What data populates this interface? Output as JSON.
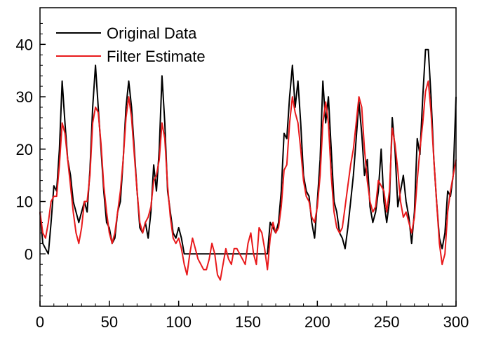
{
  "chart_data": {
    "type": "line",
    "xlim": [
      0,
      300
    ],
    "ylim": [
      -10,
      47
    ],
    "x_ticks": [
      0,
      50,
      100,
      150,
      200,
      250,
      300
    ],
    "y_ticks": [
      0,
      10,
      20,
      30,
      40
    ],
    "grid": false,
    "legend_position": "top-left",
    "series": [
      {
        "name": "Original Data",
        "color": "#000000",
        "points": [
          [
            0,
            8
          ],
          [
            2,
            2
          ],
          [
            4,
            1
          ],
          [
            6,
            0
          ],
          [
            8,
            6
          ],
          [
            10,
            13
          ],
          [
            12,
            12
          ],
          [
            14,
            20
          ],
          [
            16,
            33
          ],
          [
            18,
            25
          ],
          [
            20,
            18
          ],
          [
            22,
            15
          ],
          [
            24,
            10
          ],
          [
            26,
            8
          ],
          [
            28,
            6
          ],
          [
            30,
            8
          ],
          [
            32,
            10
          ],
          [
            34,
            8
          ],
          [
            36,
            16
          ],
          [
            38,
            28
          ],
          [
            40,
            36
          ],
          [
            42,
            28
          ],
          [
            44,
            20
          ],
          [
            46,
            12
          ],
          [
            48,
            6
          ],
          [
            50,
            5
          ],
          [
            52,
            2
          ],
          [
            54,
            3
          ],
          [
            56,
            8
          ],
          [
            58,
            10
          ],
          [
            60,
            18
          ],
          [
            62,
            28
          ],
          [
            64,
            33
          ],
          [
            66,
            28
          ],
          [
            68,
            20
          ],
          [
            70,
            12
          ],
          [
            72,
            5
          ],
          [
            74,
            4
          ],
          [
            76,
            6
          ],
          [
            78,
            3
          ],
          [
            80,
            8
          ],
          [
            82,
            17
          ],
          [
            84,
            12
          ],
          [
            86,
            20
          ],
          [
            88,
            34
          ],
          [
            90,
            25
          ],
          [
            92,
            12
          ],
          [
            94,
            8
          ],
          [
            96,
            4
          ],
          [
            98,
            3
          ],
          [
            100,
            5
          ],
          [
            102,
            3
          ],
          [
            104,
            0
          ],
          [
            110,
            0
          ],
          [
            120,
            0
          ],
          [
            130,
            0
          ],
          [
            140,
            0
          ],
          [
            150,
            0
          ],
          [
            160,
            0
          ],
          [
            164,
            0
          ],
          [
            166,
            6
          ],
          [
            168,
            5
          ],
          [
            170,
            4
          ],
          [
            172,
            6
          ],
          [
            174,
            12
          ],
          [
            176,
            23
          ],
          [
            178,
            22
          ],
          [
            180,
            30
          ],
          [
            182,
            36
          ],
          [
            184,
            28
          ],
          [
            186,
            33
          ],
          [
            188,
            25
          ],
          [
            190,
            15
          ],
          [
            192,
            12
          ],
          [
            194,
            11
          ],
          [
            196,
            6
          ],
          [
            198,
            3
          ],
          [
            200,
            10
          ],
          [
            202,
            18
          ],
          [
            204,
            33
          ],
          [
            206,
            25
          ],
          [
            208,
            30
          ],
          [
            210,
            20
          ],
          [
            212,
            10
          ],
          [
            214,
            8
          ],
          [
            216,
            4
          ],
          [
            218,
            3
          ],
          [
            220,
            1
          ],
          [
            222,
            5
          ],
          [
            224,
            10
          ],
          [
            226,
            15
          ],
          [
            228,
            22
          ],
          [
            230,
            29
          ],
          [
            232,
            23
          ],
          [
            234,
            15
          ],
          [
            236,
            18
          ],
          [
            238,
            9
          ],
          [
            240,
            6
          ],
          [
            242,
            8
          ],
          [
            244,
            12
          ],
          [
            246,
            20
          ],
          [
            248,
            10
          ],
          [
            250,
            6
          ],
          [
            252,
            10
          ],
          [
            254,
            26
          ],
          [
            256,
            20
          ],
          [
            258,
            9
          ],
          [
            260,
            12
          ],
          [
            262,
            15
          ],
          [
            264,
            10
          ],
          [
            266,
            7
          ],
          [
            268,
            2
          ],
          [
            270,
            8
          ],
          [
            272,
            22
          ],
          [
            274,
            19
          ],
          [
            276,
            30
          ],
          [
            278,
            39
          ],
          [
            280,
            39
          ],
          [
            282,
            30
          ],
          [
            284,
            18
          ],
          [
            286,
            10
          ],
          [
            288,
            3
          ],
          [
            290,
            1
          ],
          [
            292,
            4
          ],
          [
            294,
            12
          ],
          [
            296,
            11
          ],
          [
            298,
            15
          ],
          [
            300,
            30
          ]
        ]
      },
      {
        "name": "Filter Estimate",
        "color": "#e8191b",
        "points": [
          [
            0,
            8
          ],
          [
            2,
            4
          ],
          [
            4,
            3
          ],
          [
            6,
            6
          ],
          [
            8,
            10
          ],
          [
            10,
            11
          ],
          [
            12,
            11
          ],
          [
            14,
            17
          ],
          [
            16,
            25
          ],
          [
            18,
            23
          ],
          [
            20,
            18
          ],
          [
            22,
            13
          ],
          [
            24,
            8
          ],
          [
            26,
            4
          ],
          [
            28,
            2
          ],
          [
            30,
            5
          ],
          [
            32,
            10
          ],
          [
            34,
            10
          ],
          [
            36,
            15
          ],
          [
            38,
            25
          ],
          [
            40,
            28
          ],
          [
            42,
            27
          ],
          [
            44,
            21
          ],
          [
            46,
            13
          ],
          [
            48,
            8
          ],
          [
            50,
            4
          ],
          [
            52,
            2
          ],
          [
            54,
            4
          ],
          [
            56,
            8
          ],
          [
            58,
            12
          ],
          [
            60,
            18
          ],
          [
            62,
            26
          ],
          [
            64,
            30
          ],
          [
            66,
            26
          ],
          [
            68,
            19
          ],
          [
            70,
            12
          ],
          [
            72,
            6
          ],
          [
            74,
            4
          ],
          [
            76,
            6
          ],
          [
            78,
            7
          ],
          [
            80,
            9
          ],
          [
            82,
            14
          ],
          [
            84,
            15
          ],
          [
            86,
            18
          ],
          [
            88,
            25
          ],
          [
            90,
            22
          ],
          [
            92,
            13
          ],
          [
            94,
            7
          ],
          [
            96,
            3
          ],
          [
            98,
            2
          ],
          [
            100,
            3
          ],
          [
            102,
            1
          ],
          [
            104,
            -2
          ],
          [
            106,
            -4
          ],
          [
            108,
            0
          ],
          [
            110,
            3
          ],
          [
            112,
            1
          ],
          [
            114,
            -1
          ],
          [
            116,
            -2
          ],
          [
            118,
            -3
          ],
          [
            120,
            -3
          ],
          [
            122,
            -1
          ],
          [
            124,
            2
          ],
          [
            126,
            0
          ],
          [
            128,
            -4
          ],
          [
            130,
            -5
          ],
          [
            132,
            -2
          ],
          [
            134,
            1
          ],
          [
            136,
            -1
          ],
          [
            138,
            -2
          ],
          [
            140,
            1
          ],
          [
            142,
            1
          ],
          [
            144,
            0
          ],
          [
            146,
            -1
          ],
          [
            148,
            -2
          ],
          [
            150,
            2
          ],
          [
            152,
            4
          ],
          [
            154,
            0
          ],
          [
            156,
            -2
          ],
          [
            158,
            5
          ],
          [
            160,
            4
          ],
          [
            162,
            1
          ],
          [
            164,
            -3
          ],
          [
            166,
            3
          ],
          [
            168,
            6
          ],
          [
            170,
            4
          ],
          [
            172,
            5
          ],
          [
            174,
            9
          ],
          [
            176,
            16
          ],
          [
            178,
            17
          ],
          [
            180,
            25
          ],
          [
            182,
            30
          ],
          [
            184,
            27
          ],
          [
            186,
            25
          ],
          [
            188,
            20
          ],
          [
            190,
            14
          ],
          [
            192,
            11
          ],
          [
            194,
            10
          ],
          [
            196,
            7
          ],
          [
            198,
            6
          ],
          [
            200,
            9
          ],
          [
            202,
            15
          ],
          [
            204,
            25
          ],
          [
            206,
            29
          ],
          [
            208,
            25
          ],
          [
            210,
            15
          ],
          [
            212,
            8
          ],
          [
            214,
            5
          ],
          [
            216,
            4
          ],
          [
            218,
            5
          ],
          [
            220,
            9
          ],
          [
            222,
            13
          ],
          [
            224,
            17
          ],
          [
            226,
            20
          ],
          [
            228,
            25
          ],
          [
            230,
            30
          ],
          [
            232,
            28
          ],
          [
            234,
            20
          ],
          [
            236,
            14
          ],
          [
            238,
            10
          ],
          [
            240,
            8
          ],
          [
            242,
            9
          ],
          [
            244,
            14
          ],
          [
            246,
            13
          ],
          [
            248,
            12
          ],
          [
            250,
            8
          ],
          [
            252,
            12
          ],
          [
            254,
            24
          ],
          [
            256,
            21
          ],
          [
            258,
            16
          ],
          [
            260,
            10
          ],
          [
            262,
            7
          ],
          [
            264,
            8
          ],
          [
            266,
            6
          ],
          [
            268,
            4
          ],
          [
            270,
            7
          ],
          [
            272,
            14
          ],
          [
            274,
            20
          ],
          [
            276,
            25
          ],
          [
            278,
            31
          ],
          [
            280,
            33
          ],
          [
            282,
            27
          ],
          [
            284,
            18
          ],
          [
            286,
            10
          ],
          [
            288,
            2
          ],
          [
            290,
            -2
          ],
          [
            292,
            0
          ],
          [
            294,
            8
          ],
          [
            296,
            12
          ],
          [
            298,
            15
          ],
          [
            300,
            18
          ]
        ]
      }
    ]
  }
}
